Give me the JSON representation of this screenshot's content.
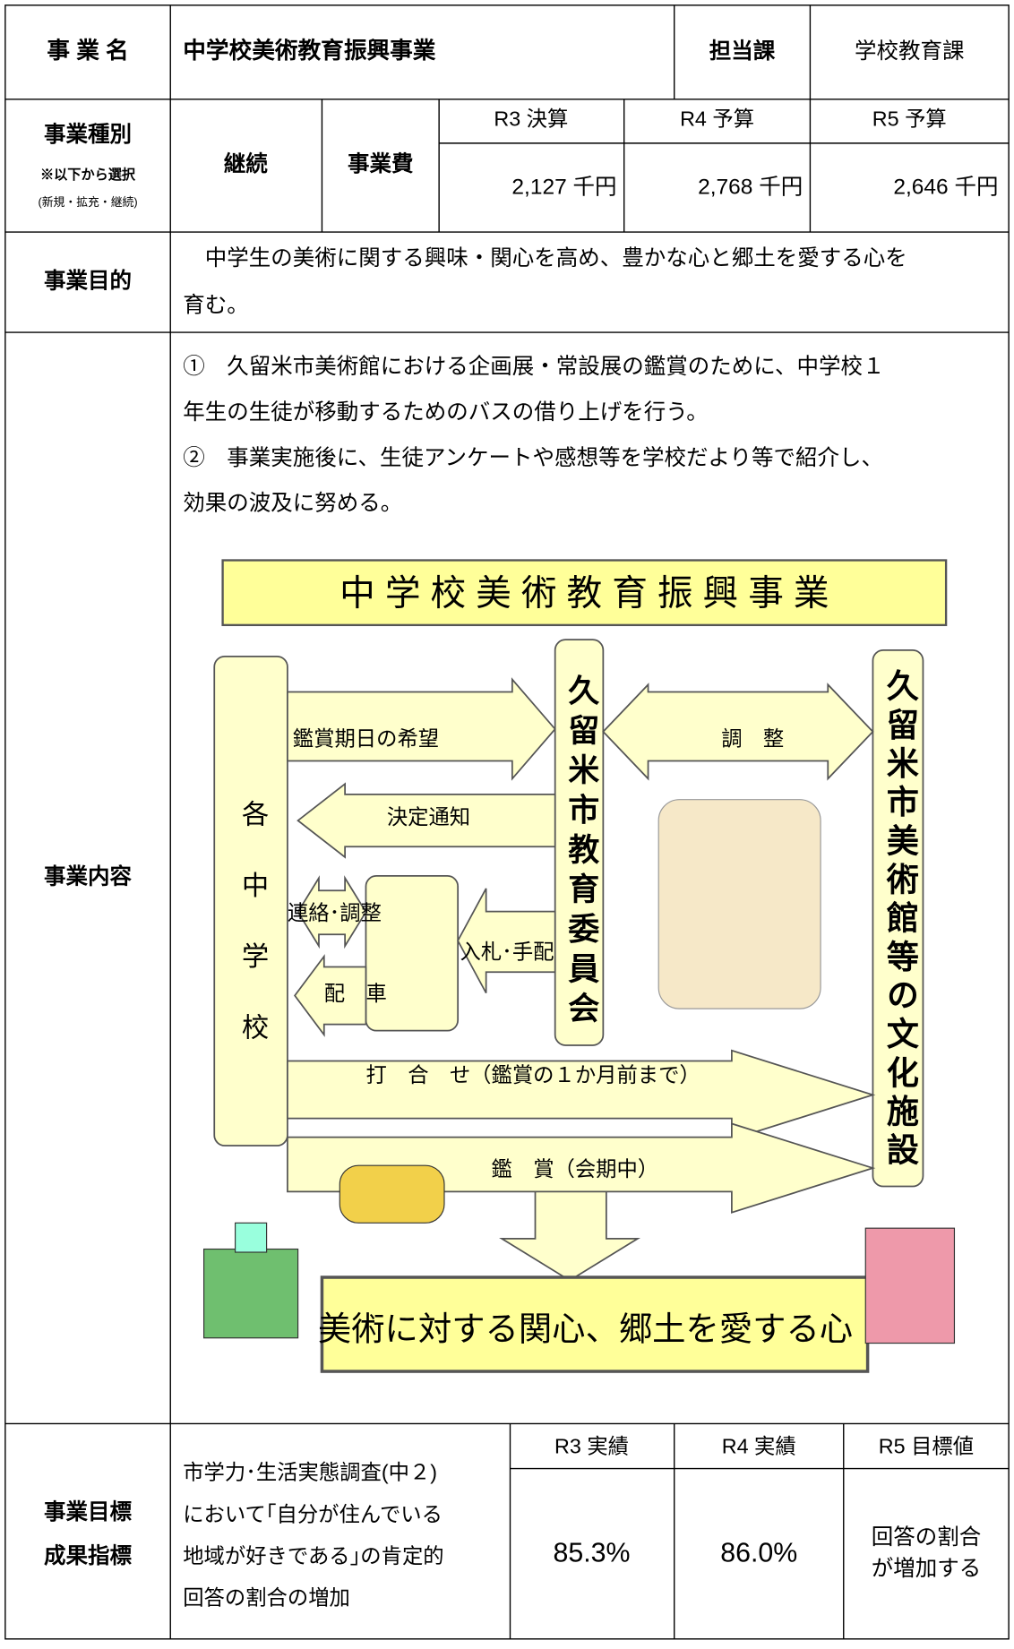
{
  "header": {
    "name_label": "事 業 名",
    "name": "中学校美術教育振興事業",
    "dept_label": "担当課",
    "dept": "学校教育課"
  },
  "type_row": {
    "label": "事業種別",
    "note": "※以下から選択",
    "options": "(新規・拡充・継続)",
    "type": "継続",
    "cost_label": "事業費",
    "budgets": [
      {
        "year": "R3 決算",
        "amount": "2,127 千円"
      },
      {
        "year": "R4 予算",
        "amount": "2,768 千円"
      },
      {
        "year": "R5 予算",
        "amount": "2,646 千円"
      }
    ]
  },
  "purpose": {
    "label": "事業目的",
    "lines": [
      "　中学生の美術に関する興味・関心を高め、豊かな心と郷土を愛する心を",
      "育む。"
    ]
  },
  "content": {
    "label": "事業内容",
    "lines": [
      "①　久留米市美術館における企画展・常設展の鑑賞のために、中学校１",
      "年生の生徒が移動するためのバスの借り上げを行う。",
      "②　事業実施後に、生徒アンケートや感想等を学校だより等で紹介し、",
      "効果の波及に努める。"
    ],
    "diagram": {
      "title": "中 学 校 美 術 教 育 振 興 事 業",
      "school": "各中学校",
      "board": "久留米市教育委員会",
      "museum": "久留米市美術館等の文化施設",
      "arrows": [
        "鑑賞期日の希望",
        "調　整",
        "決定通知",
        "連絡･調整",
        "入札･手配",
        "配　車",
        "打　合　せ（鑑賞の１か月前まで）",
        "鑑　賞（会期中）"
      ],
      "result": "美術に対する関心、郷土を愛する心"
    }
  },
  "goal": {
    "label_lines": [
      "事業目標",
      "成果指標"
    ],
    "indicator_lines": [
      "市学力･生活実態調査(中２)",
      "において｢自分が住んでいる",
      "地域が好きである｣の肯定的",
      "回答の割合の増加"
    ],
    "results": [
      {
        "year": "R3 実績",
        "value": "85.3%"
      },
      {
        "year": "R4 実績",
        "value": "86.0%"
      },
      {
        "year": "R5 目標値",
        "value_lines": [
          "回答の割合",
          "が増加する"
        ]
      }
    ]
  }
}
